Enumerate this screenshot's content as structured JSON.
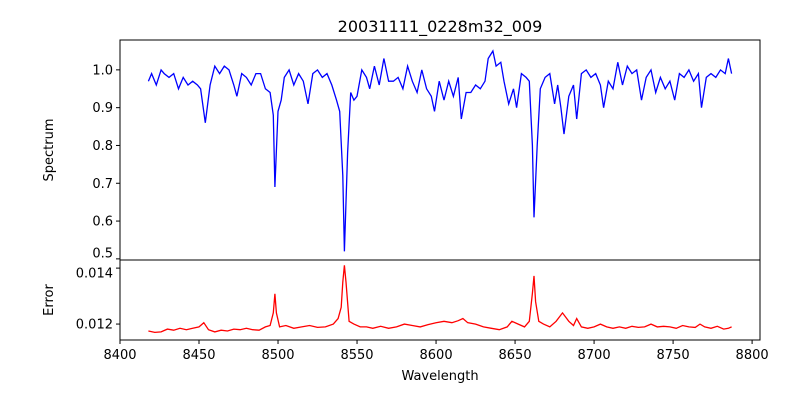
{
  "chart_data": [
    {
      "type": "line",
      "title": "20031111_0228m32_009",
      "ylabel": "Spectrum",
      "xlabel": "",
      "xlim": [
        8400,
        8805
      ],
      "ylim": [
        0.497,
        1.079
      ],
      "yticks": [
        0.5,
        0.6,
        0.7,
        0.8,
        0.9,
        1.0
      ],
      "ytick_labels": [
        "0.5",
        "0.6",
        "0.7",
        "0.8",
        "0.9",
        "1.0"
      ],
      "color": "#0000ff",
      "x": [
        8418,
        8420,
        8423,
        8426,
        8428,
        8431,
        8434,
        8437,
        8440,
        8443,
        8446,
        8449,
        8451,
        8454,
        8457,
        8460,
        8463,
        8466,
        8469,
        8472,
        8474,
        8477,
        8480,
        8483,
        8486,
        8489,
        8492,
        8495,
        8497,
        8498,
        8500,
        8502,
        8504,
        8507,
        8510,
        8513,
        8516,
        8519,
        8522,
        8525,
        8528,
        8531,
        8534,
        8537,
        8539,
        8541,
        8542,
        8544,
        8546,
        8548,
        8550,
        8553,
        8556,
        8558,
        8561,
        8564,
        8567,
        8570,
        8573,
        8576,
        8579,
        8582,
        8585,
        8588,
        8591,
        8594,
        8597,
        8599,
        8602,
        8605,
        8608,
        8611,
        8614,
        8616,
        8619,
        8622,
        8625,
        8628,
        8631,
        8633,
        8636,
        8638,
        8641,
        8643,
        8646,
        8649,
        8651,
        8654,
        8657,
        8659,
        8661,
        8662,
        8664,
        8666,
        8669,
        8672,
        8675,
        8677,
        8679,
        8681,
        8684,
        8687,
        8689,
        8692,
        8695,
        8698,
        8701,
        8704,
        8706,
        8709,
        8712,
        8715,
        8718,
        8721,
        8724,
        8727,
        8730,
        8733,
        8736,
        8739,
        8742,
        8745,
        8748,
        8751,
        8754,
        8757,
        8760,
        8763,
        8766,
        8768,
        8771,
        8774,
        8777,
        8780,
        8783,
        8785,
        8787
      ],
      "y": [
        0.97,
        0.99,
        0.96,
        1.0,
        0.99,
        0.98,
        0.99,
        0.95,
        0.98,
        0.96,
        0.97,
        0.96,
        0.95,
        0.86,
        0.96,
        1.01,
        0.99,
        1.01,
        1.0,
        0.96,
        0.93,
        0.99,
        0.98,
        0.96,
        0.99,
        0.99,
        0.95,
        0.94,
        0.88,
        0.69,
        0.89,
        0.92,
        0.98,
        1.0,
        0.96,
        0.99,
        0.97,
        0.91,
        0.99,
        1.0,
        0.98,
        0.99,
        0.96,
        0.92,
        0.89,
        0.72,
        0.52,
        0.78,
        0.94,
        0.92,
        0.93,
        1.0,
        0.98,
        0.95,
        1.01,
        0.96,
        1.03,
        0.97,
        0.97,
        0.98,
        0.95,
        1.01,
        0.97,
        0.94,
        1.0,
        0.95,
        0.93,
        0.89,
        0.97,
        0.92,
        0.97,
        0.93,
        0.98,
        0.87,
        0.94,
        0.94,
        0.96,
        0.95,
        0.97,
        1.03,
        1.05,
        1.01,
        1.02,
        0.97,
        0.91,
        0.95,
        0.9,
        0.99,
        0.98,
        0.97,
        0.8,
        0.61,
        0.8,
        0.95,
        0.98,
        0.99,
        0.91,
        0.96,
        0.9,
        0.83,
        0.93,
        0.96,
        0.87,
        0.99,
        1.0,
        0.98,
        0.99,
        0.96,
        0.9,
        0.97,
        0.95,
        1.02,
        0.96,
        1.01,
        0.99,
        1.0,
        0.92,
        0.98,
        1.0,
        0.94,
        0.98,
        0.95,
        0.97,
        0.92,
        0.99,
        0.98,
        1.0,
        0.97,
        0.99,
        0.9,
        0.98,
        0.99,
        0.98,
        1.0,
        0.99,
        1.03,
        0.99
      ]
    },
    {
      "type": "line",
      "title": "",
      "ylabel": "Error",
      "xlabel": "Wavelength",
      "xlim": [
        8400,
        8805
      ],
      "ylim": [
        0.01143,
        0.01429
      ],
      "yticks": [
        0.012,
        0.014
      ],
      "ytick_labels": [
        "0.012",
        "0.014"
      ],
      "xticks": [
        8400,
        8450,
        8500,
        8550,
        8600,
        8650,
        8700,
        8750,
        8800
      ],
      "xtick_labels": [
        "8400",
        "8450",
        "8500",
        "8550",
        "8600",
        "8650",
        "8700",
        "8750",
        "8800"
      ],
      "color": "#ff0000",
      "x": [
        8418,
        8422,
        8426,
        8430,
        8434,
        8438,
        8442,
        8446,
        8450,
        8453,
        8456,
        8460,
        8464,
        8468,
        8472,
        8476,
        8480,
        8484,
        8488,
        8492,
        8495,
        8497,
        8498,
        8499,
        8501,
        8505,
        8510,
        8515,
        8520,
        8525,
        8530,
        8535,
        8538,
        8540,
        8541,
        8542,
        8543,
        8545,
        8548,
        8552,
        8556,
        8560,
        8565,
        8570,
        8575,
        8580,
        8585,
        8590,
        8595,
        8600,
        8605,
        8610,
        8614,
        8617,
        8620,
        8625,
        8630,
        8635,
        8640,
        8645,
        8648,
        8652,
        8656,
        8659,
        8661,
        8662,
        8663,
        8665,
        8668,
        8672,
        8676,
        8680,
        8684,
        8687,
        8689,
        8692,
        8696,
        8700,
        8704,
        8708,
        8712,
        8716,
        8720,
        8724,
        8728,
        8732,
        8736,
        8740,
        8744,
        8748,
        8752,
        8756,
        8760,
        8764,
        8767,
        8770,
        8774,
        8778,
        8782,
        8785,
        8787
      ],
      "y": [
        0.01175,
        0.0117,
        0.01172,
        0.01182,
        0.01178,
        0.01185,
        0.0118,
        0.01185,
        0.0119,
        0.01205,
        0.0118,
        0.01172,
        0.01178,
        0.01175,
        0.01182,
        0.0118,
        0.01185,
        0.0118,
        0.01178,
        0.0119,
        0.01195,
        0.0124,
        0.01308,
        0.0124,
        0.0119,
        0.01195,
        0.01185,
        0.0119,
        0.01195,
        0.01188,
        0.0119,
        0.012,
        0.0122,
        0.0126,
        0.0135,
        0.0141,
        0.0135,
        0.0121,
        0.012,
        0.0119,
        0.0119,
        0.01185,
        0.01192,
        0.01185,
        0.0119,
        0.012,
        0.01195,
        0.0119,
        0.01198,
        0.01205,
        0.0121,
        0.01205,
        0.01212,
        0.0122,
        0.01205,
        0.012,
        0.0119,
        0.01185,
        0.0118,
        0.0119,
        0.0121,
        0.012,
        0.0119,
        0.0121,
        0.0131,
        0.01372,
        0.0128,
        0.0121,
        0.012,
        0.0119,
        0.0121,
        0.0124,
        0.0121,
        0.01195,
        0.0122,
        0.0119,
        0.01185,
        0.0119,
        0.012,
        0.0119,
        0.01185,
        0.0119,
        0.01185,
        0.01192,
        0.01188,
        0.0119,
        0.012,
        0.0119,
        0.01192,
        0.0119,
        0.01185,
        0.01195,
        0.0119,
        0.01188,
        0.012,
        0.0119,
        0.01185,
        0.01192,
        0.01182,
        0.01185,
        0.0119
      ]
    }
  ]
}
